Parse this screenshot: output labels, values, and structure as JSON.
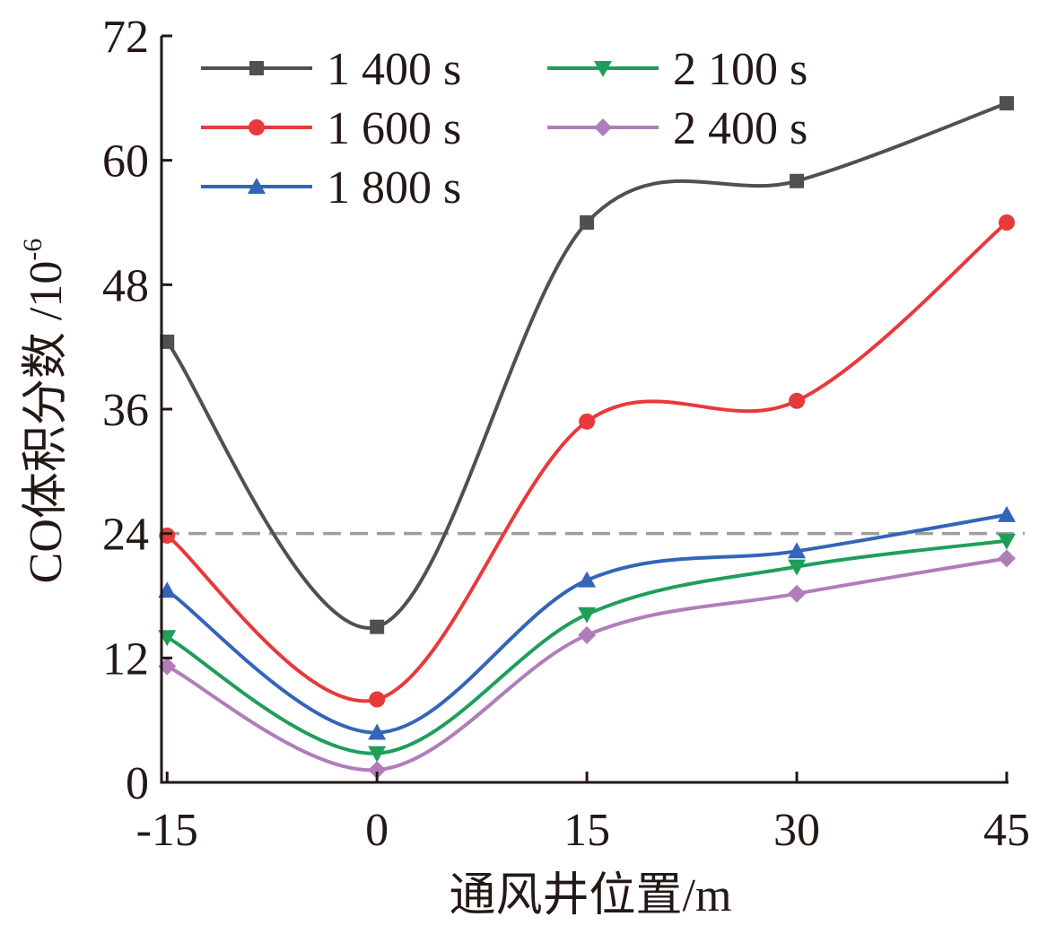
{
  "chart_data": {
    "type": "line",
    "title": "",
    "xlabel": "通风井位置/m",
    "ylabel": "CO体积分数 /10⁻⁶",
    "ylabel_main": "CO体积分数 /10",
    "ylabel_exp": "-6",
    "x": [
      -15,
      0,
      15,
      30,
      45
    ],
    "x_ticks": [
      "-15",
      "0",
      "15",
      "30",
      "45"
    ],
    "y_ticks": [
      "0",
      "12",
      "24",
      "36",
      "48",
      "60",
      "72"
    ],
    "xlim": [
      -15.4,
      45
    ],
    "ylim": [
      0,
      72
    ],
    "grid": false,
    "legend_position": "top-left, two columns",
    "reference_line": {
      "y": 24,
      "style": "dashed",
      "color": "#9e9e9e"
    },
    "series": [
      {
        "name": "1 400 s",
        "color": "#505050",
        "marker": "square",
        "values": [
          42.5,
          15.0,
          54.0,
          58.0,
          65.5
        ]
      },
      {
        "name": "1 600 s",
        "color": "#e8393b",
        "marker": "circle",
        "values": [
          23.8,
          8.0,
          34.8,
          36.8,
          54.0
        ]
      },
      {
        "name": "1 800 s",
        "color": "#3365b8",
        "marker": "triangle-up",
        "values": [
          18.5,
          4.8,
          19.5,
          22.3,
          25.8
        ]
      },
      {
        "name": "2 100 s",
        "color": "#1f9e5a",
        "marker": "triangle-down",
        "values": [
          14.0,
          2.8,
          16.2,
          20.8,
          23.3
        ]
      },
      {
        "name": "2 400 s",
        "color": "#b07dbb",
        "marker": "diamond",
        "values": [
          11.2,
          1.2,
          14.2,
          18.2,
          21.6
        ]
      }
    ]
  }
}
